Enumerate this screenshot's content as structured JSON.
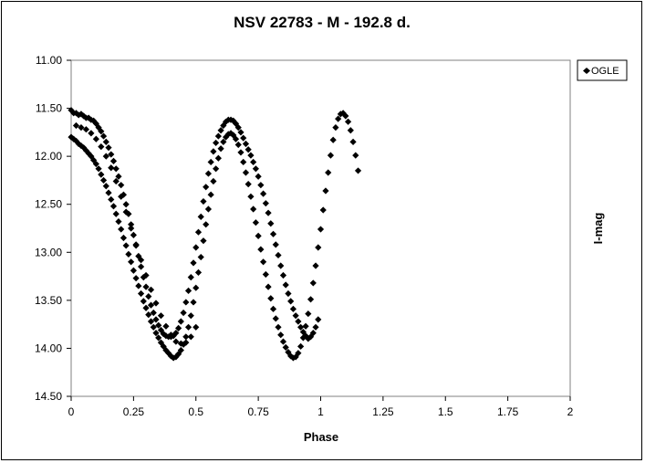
{
  "chart_data": {
    "type": "scatter",
    "title": "NSV 22783 - M - 192.8 d.",
    "xlabel": "Phase",
    "ylabel": "I-mag",
    "xlim": [
      0,
      2
    ],
    "ylim": [
      11.0,
      14.5
    ],
    "y_inverted": true,
    "x_ticks": [
      "0",
      "0.25",
      "0.5",
      "0.75",
      "1",
      "1.25",
      "1.5",
      "1.75",
      "2"
    ],
    "y_ticks": [
      "11.00",
      "11.50",
      "12.00",
      "12.50",
      "13.00",
      "13.50",
      "14.00",
      "14.50"
    ],
    "grid": false,
    "legend": {
      "position": "top-right",
      "entries": [
        "OGLE"
      ]
    },
    "marker": "diamond",
    "marker_color": "#000000",
    "series": [
      {
        "name": "OGLE",
        "points": [
          [
            0.0,
            11.52
          ],
          [
            0.01,
            11.55
          ],
          [
            0.02,
            11.55
          ],
          [
            0.03,
            11.57
          ],
          [
            0.04,
            11.56
          ],
          [
            0.05,
            11.58
          ],
          [
            0.06,
            11.6
          ],
          [
            0.07,
            11.6
          ],
          [
            0.08,
            11.62
          ],
          [
            0.09,
            11.63
          ],
          [
            0.1,
            11.66
          ],
          [
            0.11,
            11.7
          ],
          [
            0.12,
            11.74
          ],
          [
            0.13,
            11.79
          ],
          [
            0.14,
            11.85
          ],
          [
            0.15,
            11.91
          ],
          [
            0.16,
            11.98
          ],
          [
            0.17,
            12.05
          ],
          [
            0.18,
            12.13
          ],
          [
            0.19,
            12.21
          ],
          [
            0.2,
            12.3
          ],
          [
            0.21,
            12.4
          ],
          [
            0.22,
            12.5
          ],
          [
            0.23,
            12.6
          ],
          [
            0.24,
            12.71
          ],
          [
            0.25,
            12.82
          ],
          [
            0.26,
            12.93
          ],
          [
            0.27,
            13.04
          ],
          [
            0.28,
            13.15
          ],
          [
            0.29,
            13.26
          ],
          [
            0.3,
            13.36
          ],
          [
            0.31,
            13.46
          ],
          [
            0.32,
            13.55
          ],
          [
            0.33,
            13.63
          ],
          [
            0.34,
            13.7
          ],
          [
            0.35,
            13.76
          ],
          [
            0.36,
            13.81
          ],
          [
            0.37,
            13.85
          ],
          [
            0.38,
            13.87
          ],
          [
            0.39,
            13.88
          ],
          [
            0.4,
            13.88
          ],
          [
            0.41,
            13.87
          ],
          [
            0.42,
            13.84
          ],
          [
            0.43,
            13.79
          ],
          [
            0.0,
            11.8
          ],
          [
            0.01,
            11.82
          ],
          [
            0.02,
            11.84
          ],
          [
            0.03,
            11.87
          ],
          [
            0.04,
            11.89
          ],
          [
            0.05,
            11.91
          ],
          [
            0.06,
            11.94
          ],
          [
            0.07,
            11.97
          ],
          [
            0.08,
            12.0
          ],
          [
            0.09,
            12.04
          ],
          [
            0.1,
            12.08
          ],
          [
            0.11,
            12.13
          ],
          [
            0.12,
            12.19
          ],
          [
            0.13,
            12.25
          ],
          [
            0.14,
            12.31
          ],
          [
            0.15,
            12.38
          ],
          [
            0.16,
            12.45
          ],
          [
            0.17,
            12.52
          ],
          [
            0.18,
            12.6
          ],
          [
            0.19,
            12.68
          ],
          [
            0.2,
            12.76
          ],
          [
            0.21,
            12.85
          ],
          [
            0.22,
            12.93
          ],
          [
            0.23,
            13.02
          ],
          [
            0.24,
            13.1
          ],
          [
            0.25,
            13.19
          ],
          [
            0.26,
            13.27
          ],
          [
            0.27,
            13.35
          ],
          [
            0.28,
            13.43
          ],
          [
            0.29,
            13.51
          ],
          [
            0.3,
            13.58
          ],
          [
            0.31,
            13.65
          ],
          [
            0.32,
            13.72
          ],
          [
            0.33,
            13.78
          ],
          [
            0.34,
            13.84
          ],
          [
            0.35,
            13.89
          ],
          [
            0.36,
            13.94
          ],
          [
            0.37,
            13.98
          ],
          [
            0.38,
            14.02
          ],
          [
            0.39,
            14.05
          ],
          [
            0.4,
            14.08
          ],
          [
            0.41,
            14.1
          ],
          [
            0.42,
            14.09
          ],
          [
            0.43,
            14.06
          ],
          [
            0.02,
            11.68
          ],
          [
            0.04,
            11.7
          ],
          [
            0.06,
            11.72
          ],
          [
            0.08,
            11.76
          ],
          [
            0.1,
            11.82
          ],
          [
            0.12,
            11.9
          ],
          [
            0.14,
            12.0
          ],
          [
            0.16,
            12.12
          ],
          [
            0.18,
            12.26
          ],
          [
            0.2,
            12.42
          ],
          [
            0.22,
            12.58
          ],
          [
            0.24,
            12.75
          ],
          [
            0.26,
            12.92
          ],
          [
            0.28,
            13.08
          ],
          [
            0.3,
            13.24
          ],
          [
            0.32,
            13.39
          ],
          [
            0.34,
            13.53
          ],
          [
            0.36,
            13.66
          ],
          [
            0.38,
            13.77
          ],
          [
            0.4,
            13.86
          ],
          [
            0.42,
            13.93
          ],
          [
            0.44,
            13.95
          ],
          [
            0.46,
            13.94
          ],
          [
            0.48,
            13.88
          ],
          [
            0.5,
            13.78
          ],
          [
            0.44,
            13.72
          ],
          [
            0.45,
            13.63
          ],
          [
            0.46,
            13.52
          ],
          [
            0.47,
            13.4
          ],
          [
            0.48,
            13.26
          ],
          [
            0.49,
            13.11
          ],
          [
            0.5,
            12.95
          ],
          [
            0.51,
            12.79
          ],
          [
            0.52,
            12.63
          ],
          [
            0.53,
            12.47
          ],
          [
            0.54,
            12.32
          ],
          [
            0.55,
            12.18
          ],
          [
            0.56,
            12.06
          ],
          [
            0.57,
            11.95
          ],
          [
            0.58,
            11.86
          ],
          [
            0.59,
            11.79
          ],
          [
            0.6,
            11.73
          ],
          [
            0.61,
            11.68
          ],
          [
            0.62,
            11.64
          ],
          [
            0.63,
            11.62
          ],
          [
            0.64,
            11.62
          ],
          [
            0.65,
            11.63
          ],
          [
            0.66,
            11.66
          ],
          [
            0.67,
            11.7
          ],
          [
            0.68,
            11.75
          ],
          [
            0.69,
            11.81
          ],
          [
            0.7,
            11.87
          ],
          [
            0.71,
            11.93
          ],
          [
            0.72,
            11.99
          ],
          [
            0.73,
            12.06
          ],
          [
            0.74,
            12.13
          ],
          [
            0.75,
            12.21
          ],
          [
            0.76,
            12.3
          ],
          [
            0.77,
            12.39
          ],
          [
            0.78,
            12.49
          ],
          [
            0.79,
            12.59
          ],
          [
            0.8,
            12.7
          ],
          [
            0.81,
            12.81
          ],
          [
            0.44,
            14.02
          ],
          [
            0.45,
            13.96
          ],
          [
            0.46,
            13.88
          ],
          [
            0.47,
            13.78
          ],
          [
            0.48,
            13.66
          ],
          [
            0.49,
            13.52
          ],
          [
            0.5,
            13.37
          ],
          [
            0.51,
            13.21
          ],
          [
            0.52,
            13.05
          ],
          [
            0.53,
            12.88
          ],
          [
            0.54,
            12.71
          ],
          [
            0.55,
            12.55
          ],
          [
            0.56,
            12.4
          ],
          [
            0.57,
            12.26
          ],
          [
            0.58,
            12.13
          ],
          [
            0.59,
            12.02
          ],
          [
            0.6,
            11.92
          ],
          [
            0.61,
            11.85
          ],
          [
            0.62,
            11.8
          ],
          [
            0.63,
            11.77
          ],
          [
            0.64,
            11.76
          ],
          [
            0.65,
            11.78
          ],
          [
            0.66,
            11.82
          ],
          [
            0.67,
            11.88
          ],
          [
            0.68,
            11.96
          ],
          [
            0.69,
            12.06
          ],
          [
            0.7,
            12.17
          ],
          [
            0.71,
            12.29
          ],
          [
            0.72,
            12.42
          ],
          [
            0.73,
            12.55
          ],
          [
            0.74,
            12.69
          ],
          [
            0.75,
            12.83
          ],
          [
            0.76,
            12.97
          ],
          [
            0.77,
            13.1
          ],
          [
            0.78,
            13.23
          ],
          [
            0.79,
            13.36
          ],
          [
            0.8,
            13.48
          ],
          [
            0.81,
            13.59
          ],
          [
            0.82,
            12.92
          ],
          [
            0.83,
            13.03
          ],
          [
            0.84,
            13.14
          ],
          [
            0.85,
            13.24
          ],
          [
            0.86,
            13.34
          ],
          [
            0.87,
            13.43
          ],
          [
            0.88,
            13.51
          ],
          [
            0.89,
            13.59
          ],
          [
            0.9,
            13.66
          ],
          [
            0.91,
            13.72
          ],
          [
            0.92,
            13.78
          ],
          [
            0.93,
            13.83
          ],
          [
            0.94,
            13.87
          ],
          [
            0.95,
            13.9
          ],
          [
            0.96,
            13.88
          ],
          [
            0.97,
            13.84
          ],
          [
            0.98,
            13.78
          ],
          [
            0.99,
            13.7
          ],
          [
            0.82,
            13.69
          ],
          [
            0.83,
            13.78
          ],
          [
            0.84,
            13.86
          ],
          [
            0.85,
            13.93
          ],
          [
            0.86,
            13.99
          ],
          [
            0.87,
            14.04
          ],
          [
            0.88,
            14.08
          ],
          [
            0.89,
            14.1
          ],
          [
            0.9,
            14.09
          ],
          [
            0.91,
            14.05
          ],
          [
            0.92,
            13.98
          ],
          [
            0.93,
            13.89
          ],
          [
            0.94,
            13.77
          ],
          [
            0.95,
            13.64
          ],
          [
            0.96,
            13.49
          ],
          [
            0.97,
            13.32
          ],
          [
            0.98,
            13.14
          ],
          [
            0.99,
            12.95
          ],
          [
            1.0,
            12.76
          ],
          [
            1.01,
            12.56
          ],
          [
            1.02,
            12.36
          ],
          [
            1.03,
            12.17
          ],
          [
            1.04,
            11.99
          ],
          [
            1.05,
            11.83
          ],
          [
            1.06,
            11.7
          ],
          [
            1.07,
            11.61
          ],
          [
            1.08,
            11.56
          ],
          [
            1.09,
            11.55
          ],
          [
            1.1,
            11.58
          ],
          [
            1.11,
            11.64
          ],
          [
            1.12,
            11.73
          ],
          [
            1.13,
            11.85
          ],
          [
            1.14,
            11.99
          ],
          [
            1.15,
            12.15
          ]
        ]
      }
    ]
  }
}
